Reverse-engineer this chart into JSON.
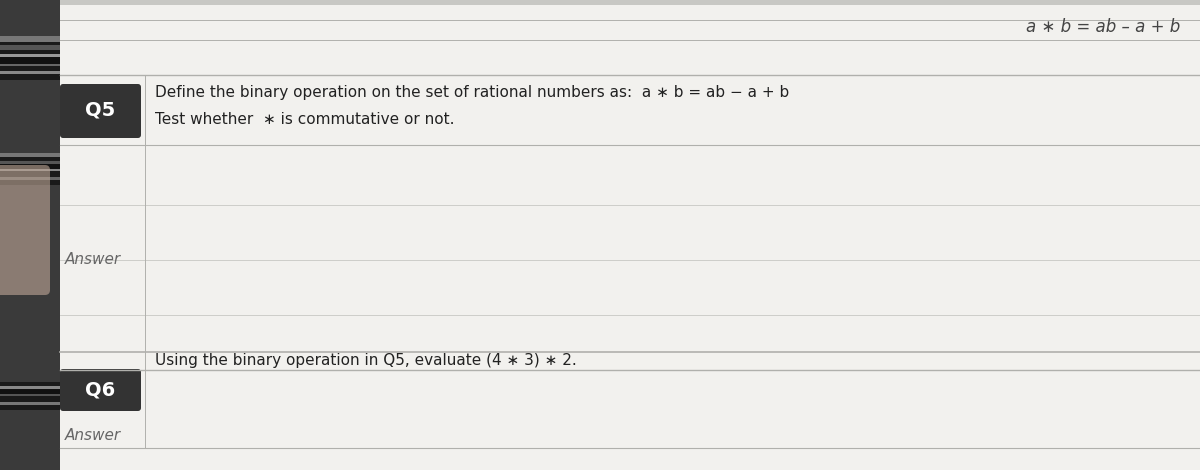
{
  "bg_color": "#c8c8c4",
  "paper_color": "#f2f1ee",
  "paper_color2": "#e8e7e3",
  "left_strip_dark": "#4a4a4a",
  "left_strip_light": "#888888",
  "q5_label": "Q5",
  "q6_label": "Q6",
  "answer_label": "Answer",
  "q5_line1": "Define the binary operation on the set of rational numbers as:  a ∗ b = ab − a + b",
  "q5_line2": "Test whether  ∗ is commutative or not.",
  "q6_text": "Using the binary operation in Q5, evaluate (4 ∗ 3) ∗ 2.",
  "header_formula": "a ∗ b = ab – a + b",
  "label_bg": "#333333",
  "label_text_color": "#ffffff",
  "answer_color": "#666666",
  "line_color": "#b0b0ac",
  "line_color2": "#c8c8c4",
  "text_color": "#222222",
  "figsize": [
    12.0,
    4.7
  ],
  "dpi": 100
}
